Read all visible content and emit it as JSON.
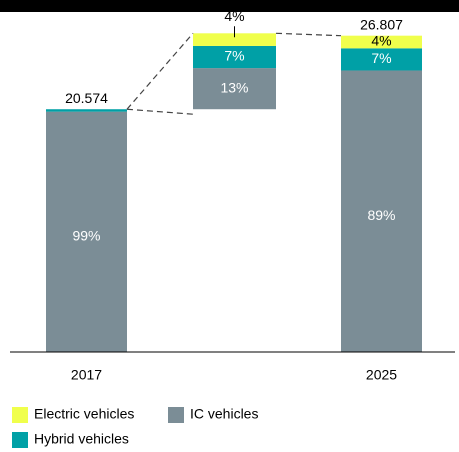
{
  "chart_data": {
    "type": "bridge-stacked-bar",
    "categories": [
      "2017",
      null,
      "2025"
    ],
    "totals": [
      20.574,
      null,
      26.807
    ],
    "series": [
      {
        "name": "IC vehicles",
        "color": "#7b8d96",
        "values": [
          99,
          13,
          89
        ],
        "value_labels": [
          "99%",
          "13%",
          "89%"
        ]
      },
      {
        "name": "Hybrid vehicles",
        "color": "#00a0a6",
        "values": [
          1,
          7,
          7
        ],
        "value_labels": [
          null,
          "7%",
          "7%"
        ]
      },
      {
        "name": "Electric vehicles",
        "color": "#f0ff4c",
        "values": [
          0,
          4,
          4
        ],
        "value_labels": [
          null,
          "4%",
          "4%"
        ]
      }
    ]
  }
}
